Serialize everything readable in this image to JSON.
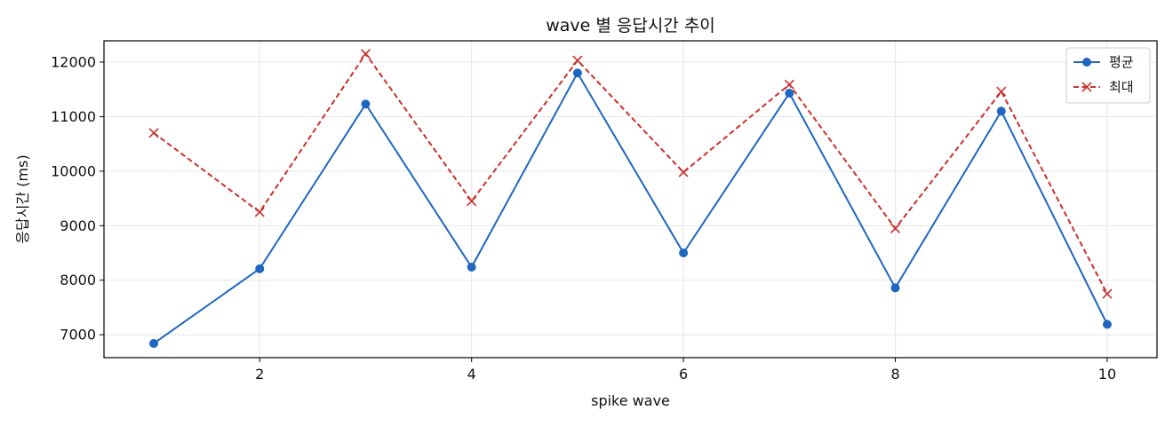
{
  "chart_data": {
    "type": "line",
    "title": "wave 별 응답시간 추이",
    "xlabel": "spike wave",
    "ylabel": "응답시간 (ms)",
    "x": [
      1,
      2,
      3,
      4,
      5,
      6,
      7,
      8,
      9,
      10
    ],
    "xlim": [
      0.53,
      10.47
    ],
    "ylim": [
      6580,
      12390
    ],
    "xticks": [
      2,
      4,
      6,
      8,
      10
    ],
    "yticks": [
      7000,
      8000,
      9000,
      10000,
      11000,
      12000
    ],
    "grid": true,
    "legend_position": "top-right",
    "series": [
      {
        "name": "평균",
        "color": "#1f66c1",
        "line_style": "solid",
        "marker": "circle",
        "values": [
          6840,
          8210,
          11230,
          8240,
          11800,
          8500,
          11430,
          7860,
          11100,
          7190
        ]
      },
      {
        "name": "최대",
        "color": "#c9302c",
        "line_style": "dashed",
        "marker": "x",
        "values": [
          10700,
          9250,
          12150,
          9450,
          12030,
          9980,
          11590,
          8950,
          11460,
          7750
        ]
      }
    ]
  }
}
